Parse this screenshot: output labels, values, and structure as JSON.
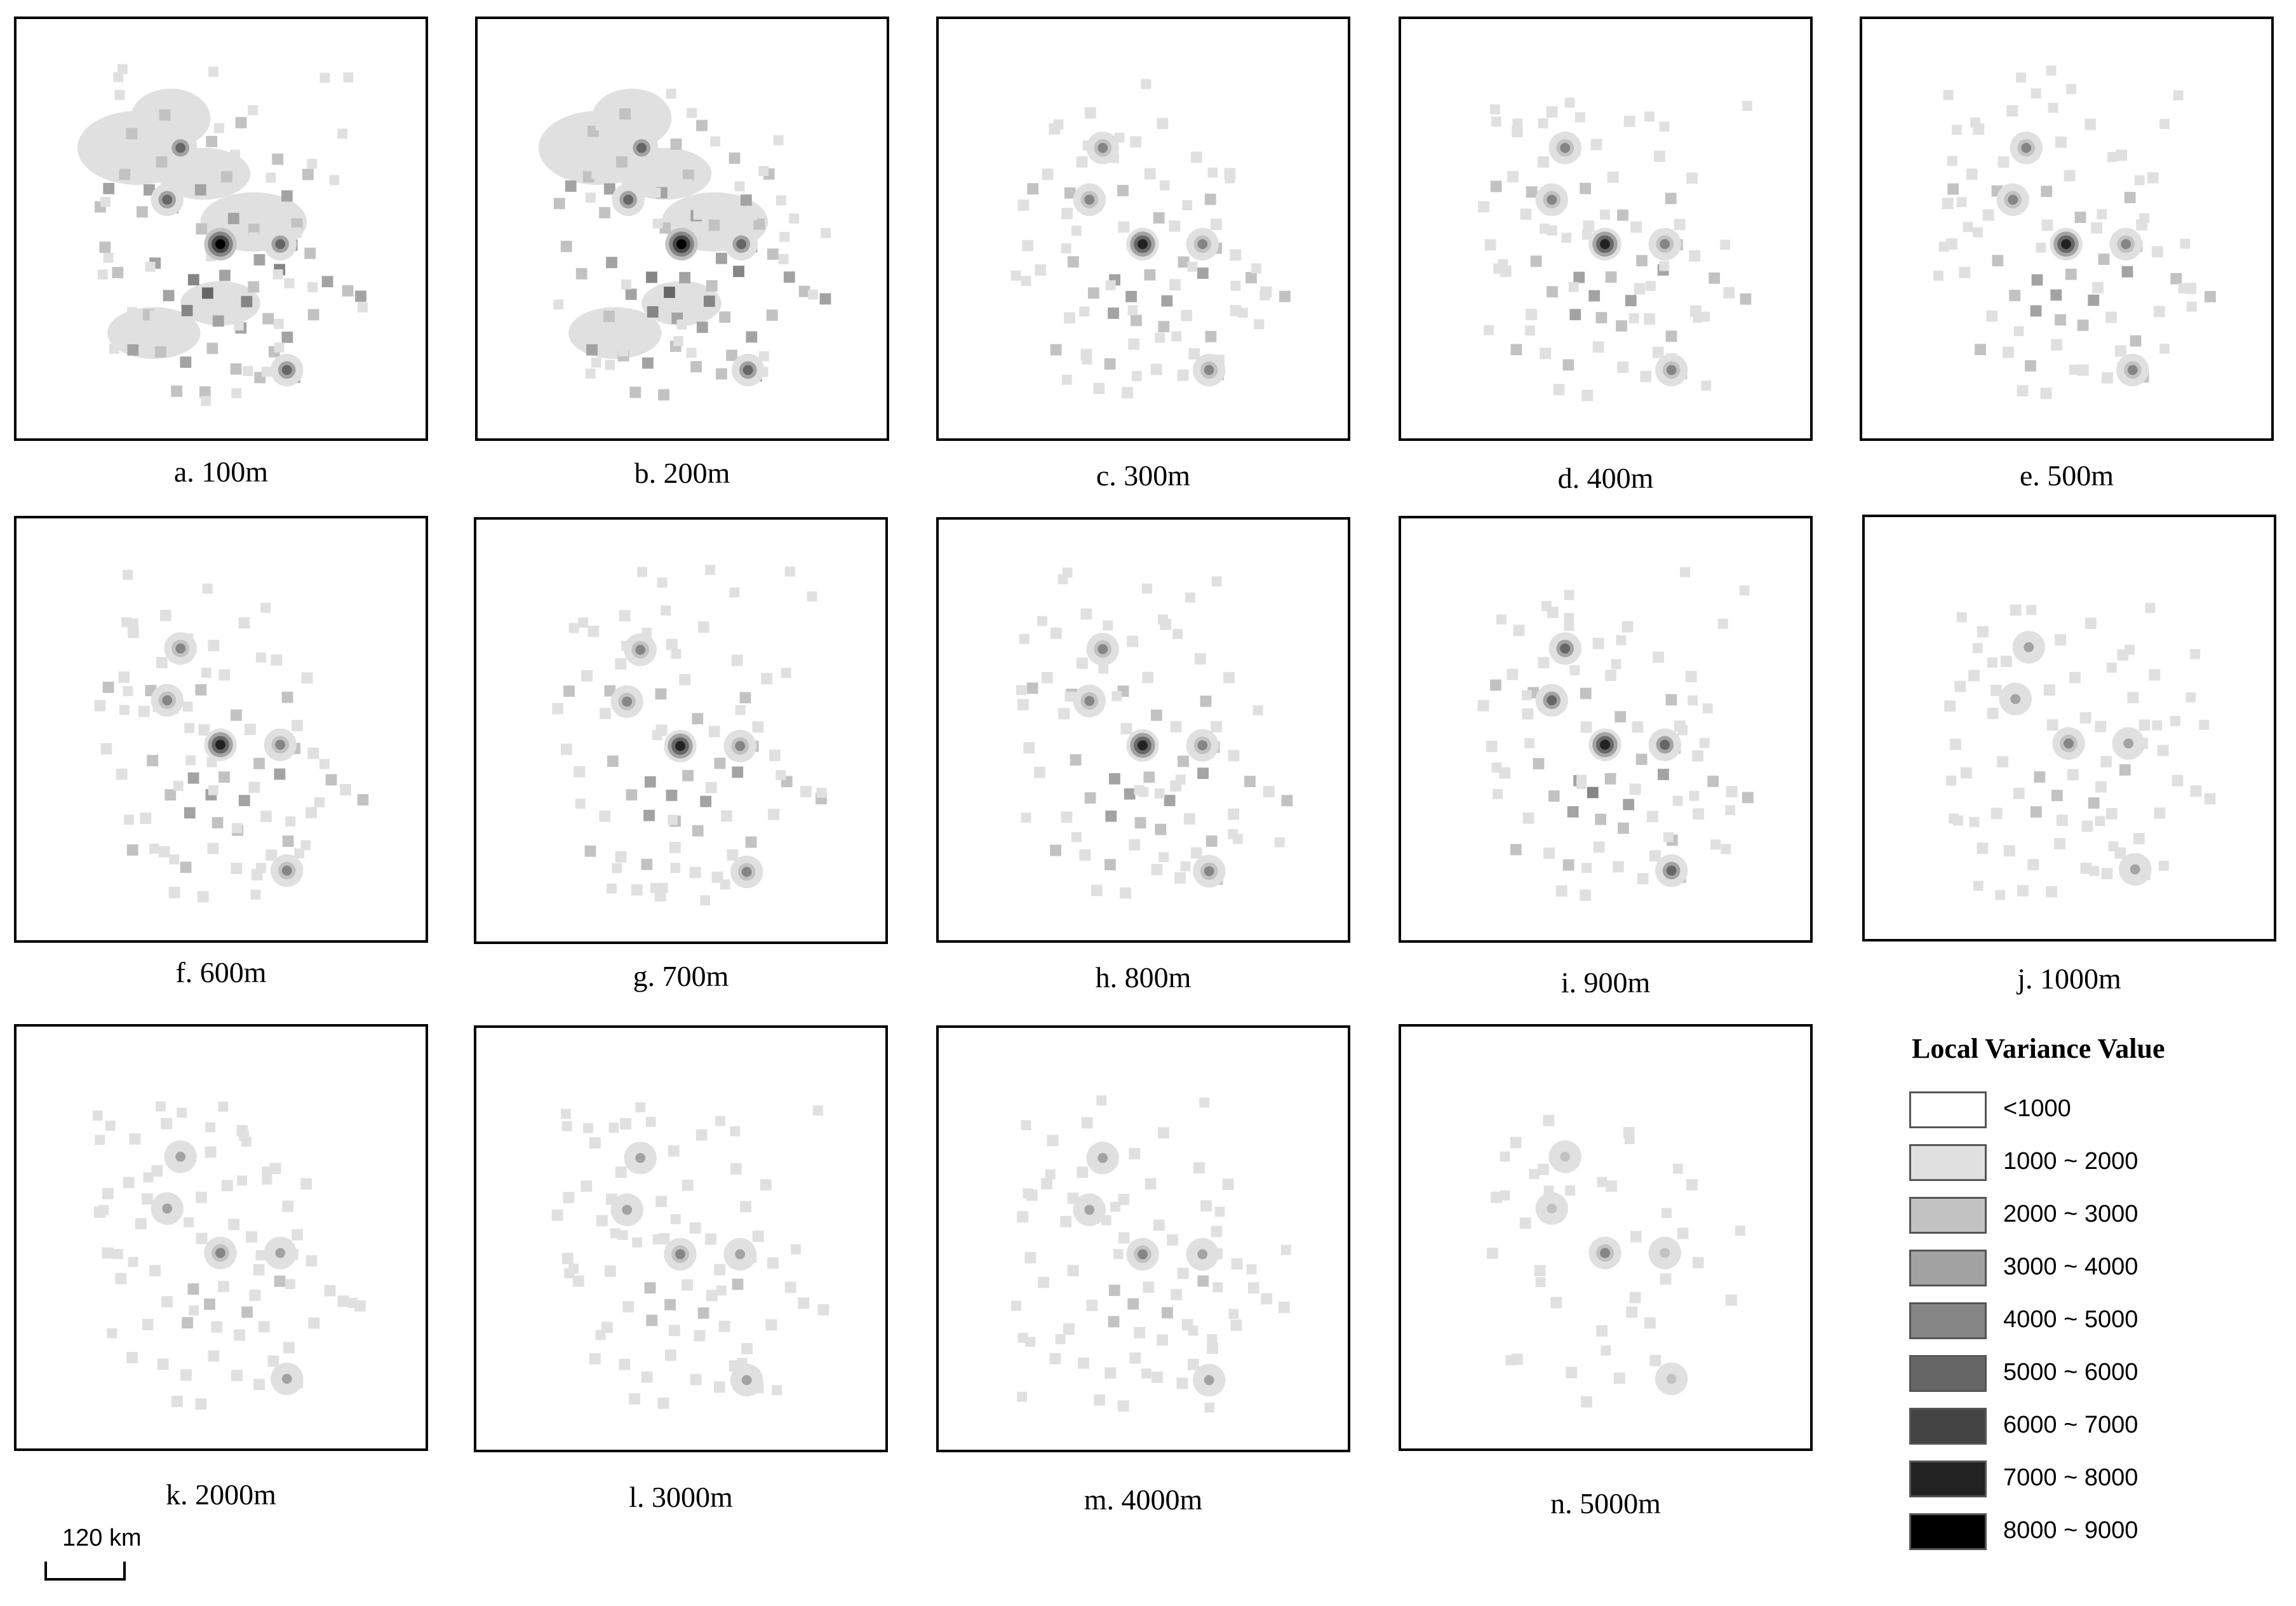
{
  "panels": [
    {
      "id": "a",
      "caption": "a. 100m",
      "scale_m": 100,
      "coverage": "extensive",
      "intensity": 1.0
    },
    {
      "id": "b",
      "caption": "b. 200m",
      "scale_m": 200,
      "coverage": "extensive",
      "intensity": 1.0
    },
    {
      "id": "c",
      "caption": "c. 300m",
      "scale_m": 300,
      "coverage": "moderate",
      "intensity": 0.85
    },
    {
      "id": "d",
      "caption": "d. 400m",
      "scale_m": 400,
      "coverage": "moderate",
      "intensity": 0.85
    },
    {
      "id": "e",
      "caption": "e. 500m",
      "scale_m": 500,
      "coverage": "moderate",
      "intensity": 0.85
    },
    {
      "id": "f",
      "caption": "f. 600m",
      "scale_m": 600,
      "coverage": "moderate",
      "intensity": 0.85
    },
    {
      "id": "g",
      "caption": "g. 700m",
      "scale_m": 700,
      "coverage": "moderate",
      "intensity": 0.85
    },
    {
      "id": "h",
      "caption": "h. 800m",
      "scale_m": 800,
      "coverage": "moderate",
      "intensity": 0.85
    },
    {
      "id": "i",
      "caption": "i. 900m",
      "scale_m": 900,
      "coverage": "moderate",
      "intensity": 0.9
    },
    {
      "id": "j",
      "caption": "j. 1000m",
      "scale_m": 1000,
      "coverage": "sparse",
      "intensity": 0.55
    },
    {
      "id": "k",
      "caption": "k. 2000m",
      "scale_m": 2000,
      "coverage": "sparse",
      "intensity": 0.55
    },
    {
      "id": "l",
      "caption": "l. 3000m",
      "scale_m": 3000,
      "coverage": "sparse",
      "intensity": 0.55
    },
    {
      "id": "m",
      "caption": "m. 4000m",
      "scale_m": 4000,
      "coverage": "sparse",
      "intensity": 0.55
    },
    {
      "id": "n",
      "caption": "n. 5000m",
      "scale_m": 5000,
      "coverage": "minimal",
      "intensity": 0.45
    }
  ],
  "legend": {
    "title": "Local Variance Value",
    "items": [
      {
        "label": "<1000",
        "color": "#ffffff"
      },
      {
        "label": "1000 ~ 2000",
        "color": "#e0e0e0"
      },
      {
        "label": "2000 ~ 3000",
        "color": "#c2c2c2"
      },
      {
        "label": "3000 ~ 4000",
        "color": "#a3a3a3"
      },
      {
        "label": "4000 ~ 5000",
        "color": "#858585"
      },
      {
        "label": "5000 ~ 6000",
        "color": "#666666"
      },
      {
        "label": "6000 ~ 7000",
        "color": "#444444"
      },
      {
        "label": "7000 ~ 8000",
        "color": "#222222"
      },
      {
        "label": "8000 ~ 9000",
        "color": "#000000"
      }
    ]
  },
  "scale_bar": {
    "label": "120 km"
  }
}
